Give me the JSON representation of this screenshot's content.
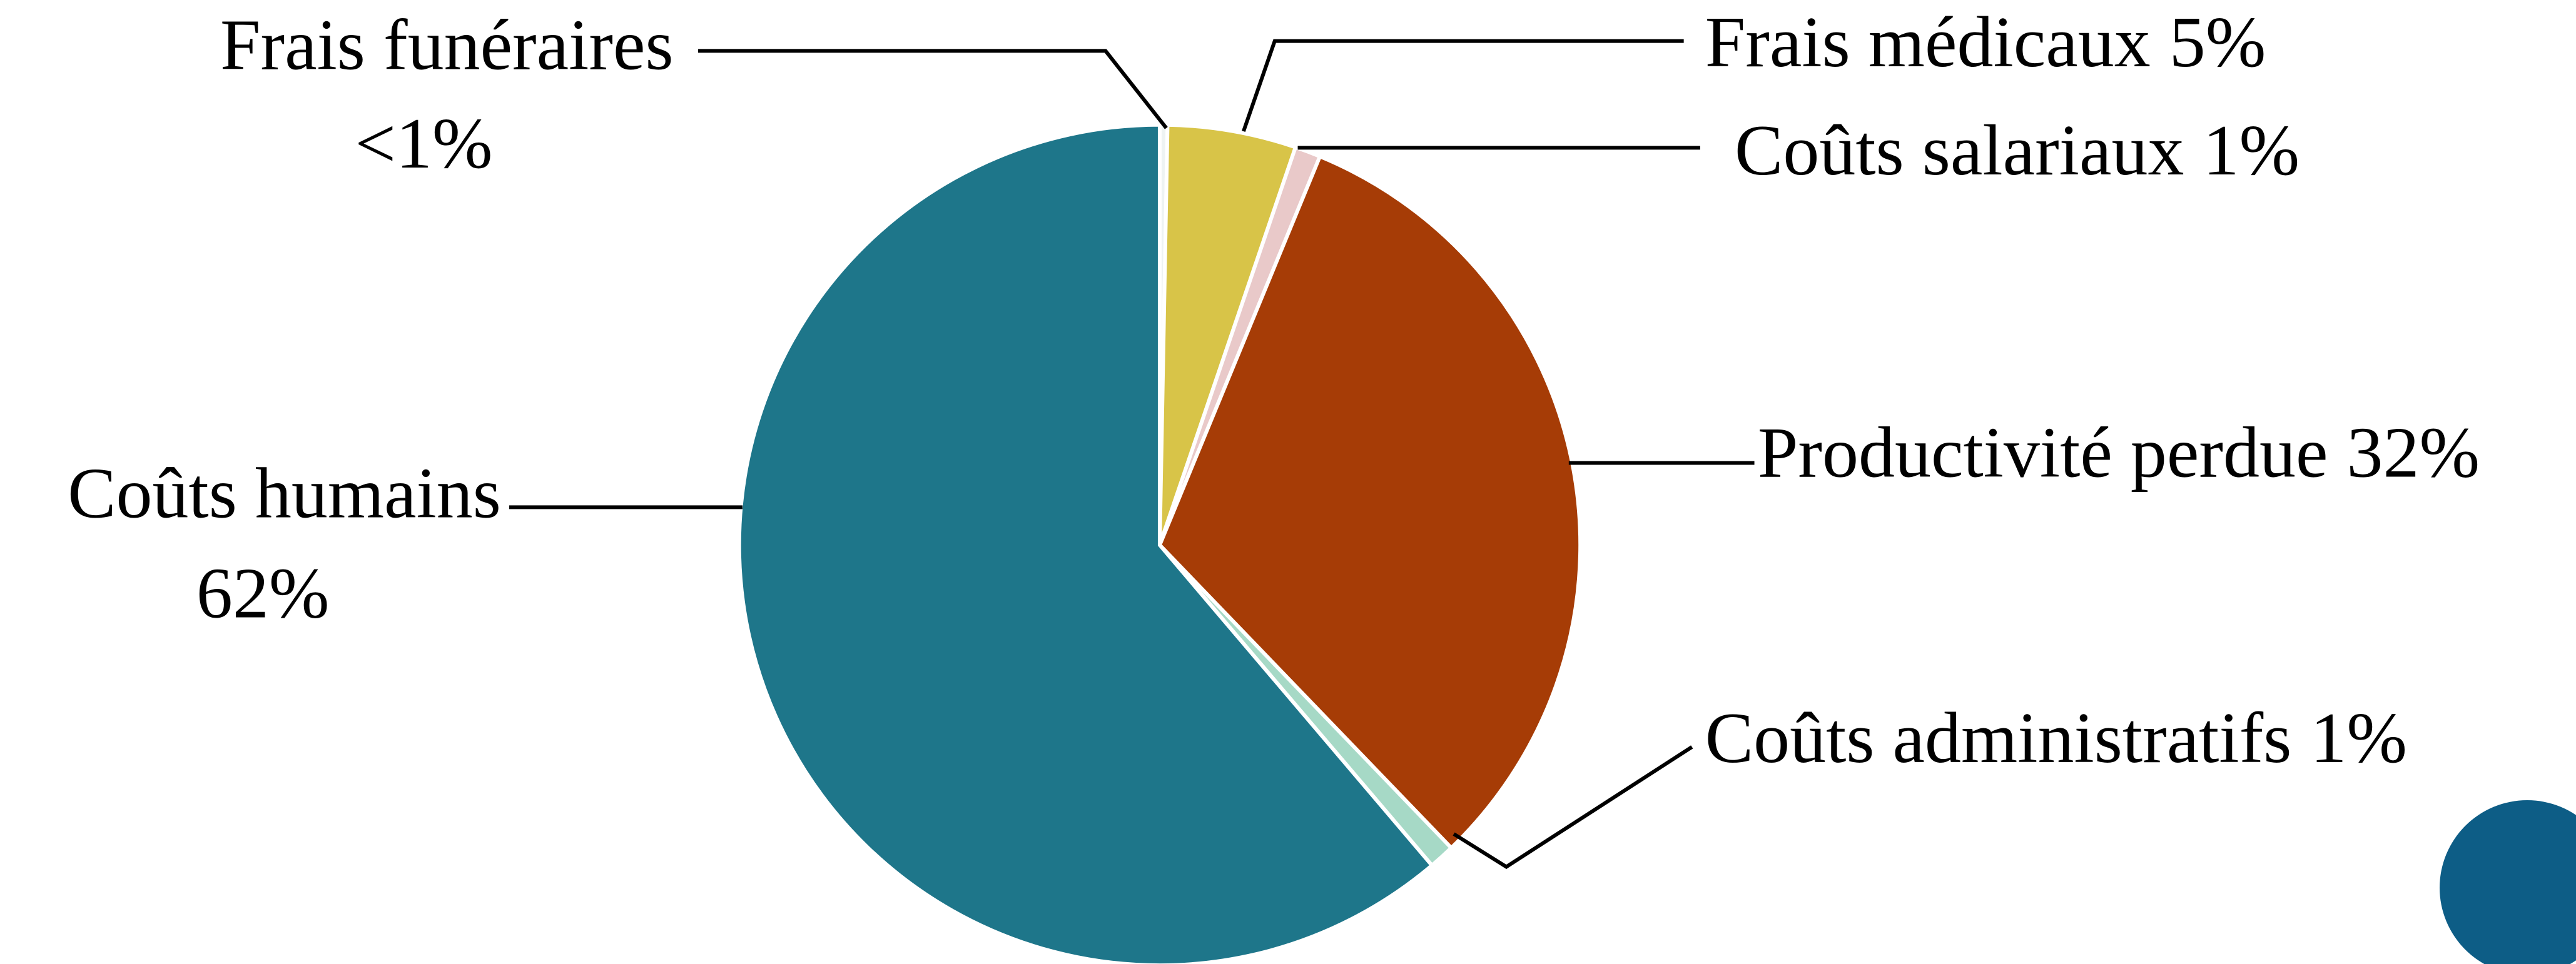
{
  "chart_data": {
    "type": "pie",
    "categories": [
      "Frais funéraires",
      "Frais médicaux",
      "Coûts salariaux",
      "Productivité perdue",
      "Coûts administratifs",
      "Coûts humains"
    ],
    "values": [
      0.3,
      5,
      1,
      32,
      1,
      62
    ],
    "value_labels": [
      "<1%",
      "5%",
      "1%",
      "32%",
      "1%",
      "62%"
    ],
    "colors": [
      "#eef3f3",
      "#d8c448",
      "#e9c9c9",
      "#a63c06",
      "#a6d9c6",
      "#1e768a"
    ]
  }
}
